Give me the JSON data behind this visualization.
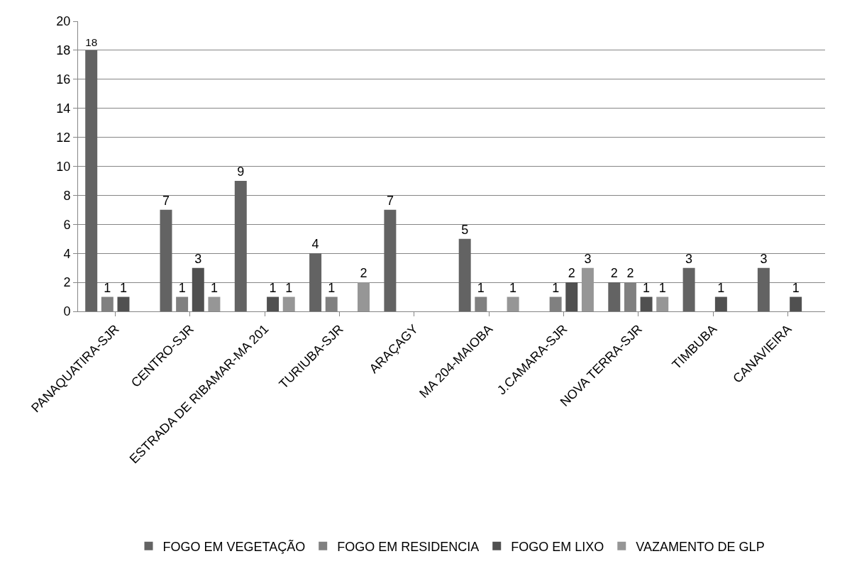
{
  "chart_data": {
    "type": "bar",
    "categories": [
      "PANAQUATIRA-SJR",
      "CENTRO-SJR",
      "ESTRADA DE RIBAMAR-MA 201",
      "TURIUBA-SJR",
      "ARAÇAGY",
      "MA 204-MAIOBA",
      "J.CAMARA-SJR",
      "NOVA TERRA-SJR",
      "TIMBUBA",
      "CANAVIEIRA"
    ],
    "series": [
      {
        "name": "FOGO EM VEGETAÇÃO",
        "color": "#636363",
        "values": [
          18,
          7,
          9,
          4,
          7,
          5,
          null,
          2,
          3,
          3
        ]
      },
      {
        "name": "FOGO EM RESIDENCIA",
        "color": "#808080",
        "values": [
          1,
          1,
          null,
          1,
          null,
          1,
          1,
          2,
          null,
          null
        ]
      },
      {
        "name": "FOGO EM LIXO",
        "color": "#505050",
        "values": [
          1,
          3,
          1,
          null,
          null,
          null,
          2,
          1,
          1,
          1
        ]
      },
      {
        "name": "VAZAMENTO DE GLP",
        "color": "#969696",
        "values": [
          null,
          1,
          1,
          2,
          null,
          1,
          3,
          1,
          null,
          null
        ]
      }
    ],
    "ylim": [
      0,
      20
    ],
    "yticks": [
      0,
      2,
      4,
      6,
      8,
      10,
      12,
      14,
      16,
      18,
      20
    ],
    "grid": "y",
    "legend": "bottom",
    "data_labels": true
  }
}
